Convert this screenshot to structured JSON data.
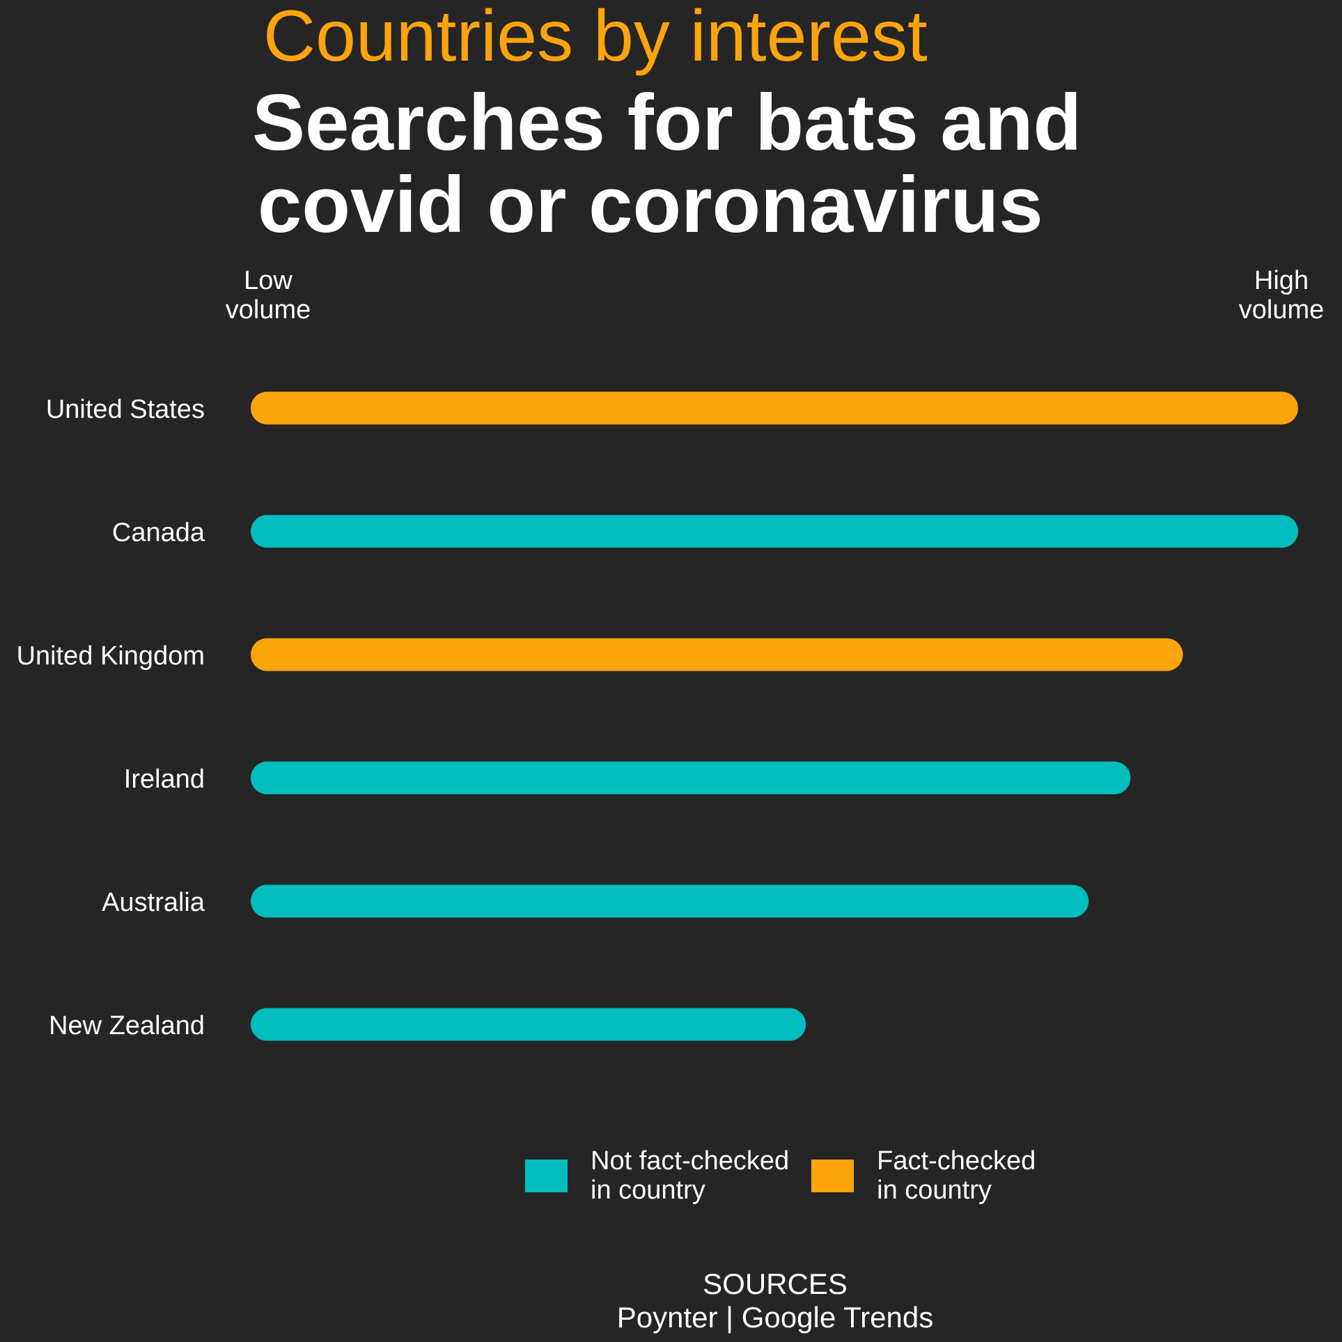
{
  "header": {
    "kicker": "Countries by interest",
    "title_line1": "Searches for bats and",
    "title_line2": "covid or coronavirus"
  },
  "scale": {
    "low_line1": "Low",
    "low_line2": "volume",
    "high_line1": "High",
    "high_line2": "volume"
  },
  "colors": {
    "fact_checked": "#fca40c",
    "not_fact_checked": "#02bdbd",
    "background": "#252525",
    "text": "#ffffff"
  },
  "legend": {
    "items": [
      {
        "key": "not_fact_checked",
        "line1": "Not fact-checked",
        "line2": "in country"
      },
      {
        "key": "fact_checked",
        "line1": "Fact-checked",
        "line2": "in country"
      }
    ]
  },
  "footer": {
    "sources_label": "SOURCES",
    "sources_text": "Poynter | Google Trends"
  },
  "chart_data": {
    "type": "bar",
    "orientation": "horizontal",
    "title": "Searches for bats and covid or coronavirus",
    "subtitle": "Countries by interest",
    "xlabel": "",
    "ylabel": "",
    "xlim": [
      0,
      100
    ],
    "grid": false,
    "legend_placement": "bottom",
    "categories": [
      "United States",
      "Canada",
      "United Kingdom",
      "Ireland",
      "Australia",
      "New Zealand"
    ],
    "values": [
      100,
      100,
      89,
      84,
      80,
      53
    ],
    "fact_checked": [
      true,
      false,
      true,
      false,
      false,
      false
    ]
  }
}
